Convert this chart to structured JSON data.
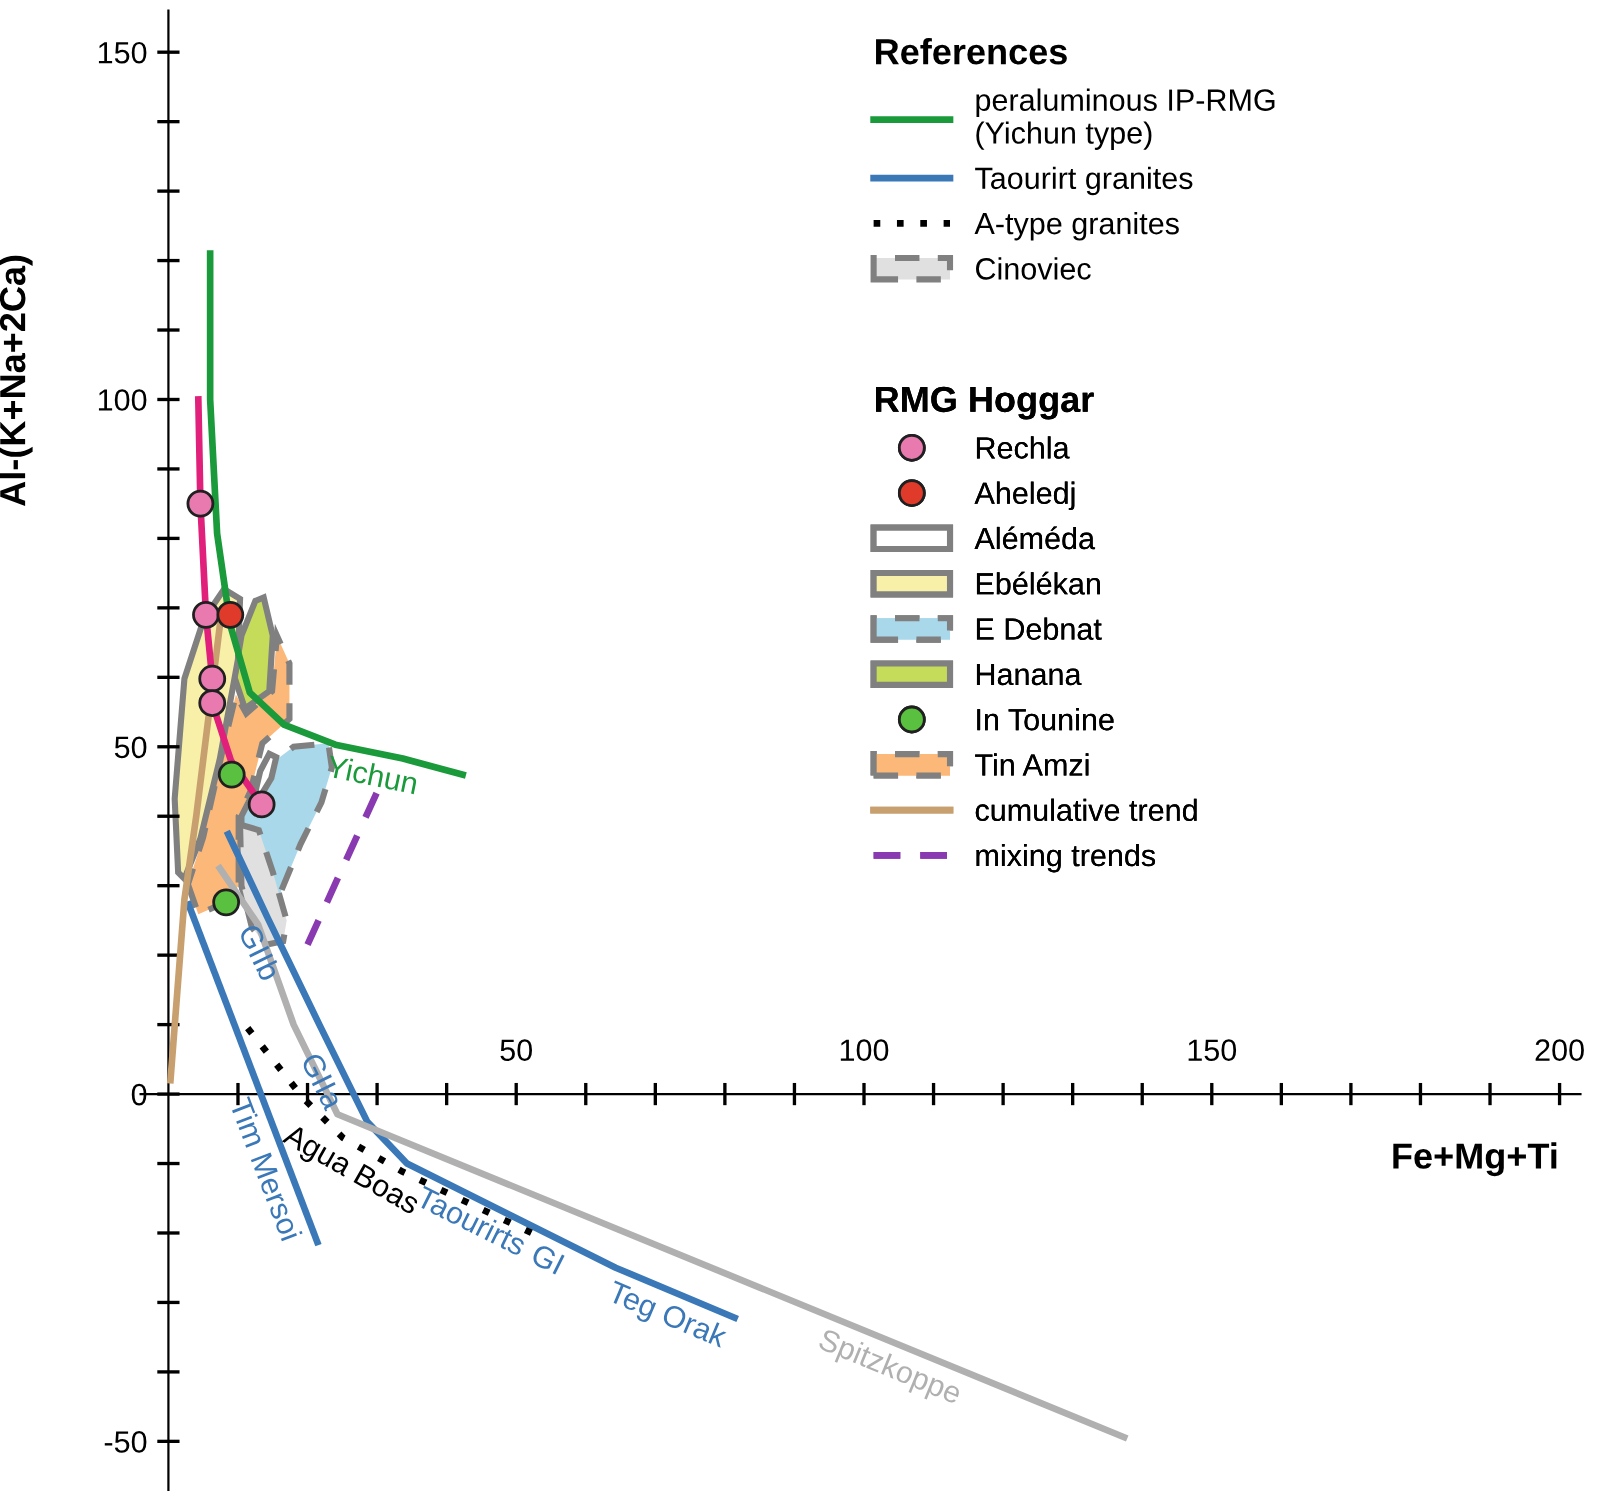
{
  "chart_data": {
    "type": "line",
    "xlabel": "Fe+Mg+Ti",
    "ylabel": "Al-(K+Na+2Ca)",
    "legend_title": [
      "References",
      "RMG Hoggar"
    ],
    "xlim": [
      -4,
      203
    ],
    "ylim": [
      -57,
      156
    ],
    "xticks": [
      {
        "value": 10,
        "label": null
      },
      {
        "value": 20,
        "label": null
      },
      {
        "value": 30,
        "label": null
      },
      {
        "value": 40,
        "label": null
      },
      50,
      {
        "value": 60,
        "label": null
      },
      {
        "value": 70,
        "label": null
      },
      {
        "value": 80,
        "label": null
      },
      {
        "value": 90,
        "label": null
      },
      100,
      {
        "value": 110,
        "label": null
      },
      {
        "value": 120,
        "label": null
      },
      {
        "value": 130,
        "label": null
      },
      {
        "value": 140,
        "label": null
      },
      150,
      {
        "value": 160,
        "label": null
      },
      {
        "value": 170,
        "label": null
      },
      {
        "value": 180,
        "label": null
      },
      {
        "value": 190,
        "label": null
      },
      200
    ],
    "yticks": [
      -50,
      {
        "value": -40,
        "label": null
      },
      {
        "value": -30,
        "label": null
      },
      {
        "value": -20,
        "label": null
      },
      {
        "value": -10,
        "label": null
      },
      0,
      {
        "value": 10,
        "label": null
      },
      {
        "value": 20,
        "label": null
      },
      {
        "value": 30,
        "label": null
      },
      {
        "value": 40,
        "label": null
      },
      50,
      {
        "value": 60,
        "label": null
      },
      {
        "value": 70,
        "label": null
      },
      {
        "value": 80,
        "label": null
      },
      {
        "value": 90,
        "label": null
      },
      100,
      {
        "value": 110,
        "label": null
      },
      {
        "value": 120,
        "label": null
      },
      {
        "value": 130,
        "label": null
      },
      {
        "value": 140,
        "label": null
      },
      150
    ],
    "legend": "top right",
    "series": [
      {
        "name": "peraluminous IP-RMG\n(Yichun type)",
        "color": "#1a9a3a",
        "line_style": "solid",
        "x": [
          6,
          6,
          7,
          8.9,
          11.7,
          16.6,
          24,
          33.7,
          42.3
        ],
        "values": [
          121,
          100,
          80.7,
          67.5,
          57.8,
          53.2,
          50.3,
          48.3,
          46
        ]
      },
      {
        "name": "Taourirt granites",
        "color": "#3a78b8",
        "line_style": "solid",
        "x": [
          8.6,
          14.3,
          21.7,
          28.6,
          34.3,
          64.3,
          81.4
        ],
        "values": [
          37.4,
          25.3,
          10,
          -4,
          -10,
          -25,
          -32.2
        ]
      },
      {
        "color": "#3a78b8",
        "line_style": "solid",
        "x": [
          2.9,
          21.4
        ],
        "values": [
          27.3,
          -21.3
        ]
      },
      {
        "name": "A-type granites",
        "color": "#000000",
        "line_style": "dotted",
        "x": [
          11.4,
          19.4,
          25.1,
          33.7,
          53.7
        ],
        "values": [
          9.5,
          -0.6,
          -6.3,
          -11.2,
          -20.7
        ]
      },
      {
        "color": "#b0b0b0",
        "line_style": "solid",
        "x": [
          7.4,
          12.9,
          18,
          24.3,
          137.4
        ],
        "values": [
          32.5,
          24.4,
          10,
          -2.9,
          -49.4
        ]
      },
      {
        "name": "Cinoviec",
        "type": "area",
        "color": "#e0e0e0",
        "line_style": "dashed",
        "x": [
          10.3,
          13,
          15,
          17,
          16.5,
          14,
          12,
          10.5
        ],
        "values": [
          38.8,
          38,
          32,
          25,
          22,
          21.5,
          24,
          30
        ]
      },
      {
        "name": "Rechla",
        "type": "scatter",
        "color": "#e87ab0",
        "marker": "circle",
        "x": [
          4.6,
          5.4,
          6.3,
          6.3,
          13.4
        ],
        "values": [
          85,
          69,
          59.8,
          56.3,
          41.7
        ]
      },
      {
        "name": "Aheledj",
        "type": "scatter",
        "color": "#e03a2a",
        "marker": "circle",
        "x": [
          8.9
        ],
        "values": [
          69
        ]
      },
      {
        "name": "Aléméda",
        "type": "area",
        "color": "#ffffff",
        "line_style": "solid",
        "x": [
          12.5,
          13.2,
          14.5,
          15.5,
          14.8,
          13.3
        ],
        "values": [
          43.5,
          46.5,
          49,
          48.5,
          45.5,
          43
        ]
      },
      {
        "name": "Ebélékan",
        "type": "area",
        "color": "#f8f0a8",
        "line_style": "solid",
        "x": [
          1.4,
          0.9,
          2.3,
          5.1,
          8,
          10.3,
          10,
          7.4,
          4.6,
          2.3
        ],
        "values": [
          31.9,
          42.5,
          59.8,
          68.4,
          72.7,
          71.3,
          62.6,
          48.3,
          36.8,
          31
        ]
      },
      {
        "name": "E Debnat",
        "type": "area",
        "color": "#a8d8ea",
        "line_style": "dashed",
        "x": [
          10.5,
          14,
          18,
          23,
          23.5,
          22,
          19,
          15.7,
          12,
          10.5
        ],
        "values": [
          40,
          47,
          50,
          50.5,
          47,
          42,
          36,
          28,
          24.5,
          30
        ]
      },
      {
        "name": "Hanana",
        "type": "area",
        "color": "#c4dc5a",
        "line_style": "solid",
        "x": [
          13.7,
          15,
          14.5,
          11,
          9.5,
          10.5,
          12.5
        ],
        "values": [
          71.5,
          66,
          58,
          55.5,
          60,
          66,
          71
        ]
      },
      {
        "name": "In Tounine",
        "type": "scatter",
        "color": "#5ac040",
        "marker": "circle",
        "x": [
          9.1,
          8.3
        ],
        "values": [
          46,
          27.6
        ]
      },
      {
        "name": "Tin Amzi",
        "type": "area",
        "color": "#fbb878",
        "line_style": "dashed",
        "x": [
          2.8,
          4.3,
          8,
          10.1,
          10.1,
          11.8,
          13.5,
          17.4,
          17.4,
          15.6,
          14.9,
          11.2,
          9.7,
          7.9,
          5
        ],
        "values": [
          30.2,
          25.9,
          27.5,
          30,
          40,
          43.6,
          50.5,
          54,
          62,
          66,
          58,
          54.8,
          57.5,
          50,
          37
        ]
      },
      {
        "name": "cumulative trend",
        "color": "#c8a070",
        "line_style": "solid",
        "x": [
          7.4,
          4,
          2.3,
          0.3
        ],
        "values": [
          67.5,
          40,
          28,
          2
        ]
      },
      {
        "name": "mixing trends",
        "color": "#8a3ab0",
        "line_style": "dashed",
        "x": [
          20,
          30
        ],
        "values": [
          21.5,
          43.5
        ]
      },
      {
        "color": "#e0207a",
        "line_style": "solid",
        "x": [
          13.4,
          9,
          6.3,
          6.3,
          5.4,
          4.6,
          4.3
        ],
        "values": [
          41.7,
          48,
          56.3,
          59.8,
          69,
          85,
          100
        ]
      }
    ],
    "annotations": [
      {
        "text": "Yichun",
        "x": 30,
        "y": 49.1
      },
      {
        "text": "GIIb",
        "x": 16,
        "y": 21.8
      },
      {
        "text": "GIIa",
        "x": 25,
        "y": 3.3
      },
      {
        "text": "GI",
        "x": 56,
        "y": -20.9
      },
      {
        "text": "Tim Mersoi",
        "x": 17,
        "y": -9.7
      },
      {
        "text": "Taourirts",
        "x": 45,
        "y": -15.4
      },
      {
        "text": "Teg Orak",
        "x": 73,
        "y": -28.7
      },
      {
        "text": "Agua Boas",
        "x": 28,
        "y": -8
      },
      {
        "text": "Spitzkoppe",
        "x": 105,
        "y": -36.2
      }
    ]
  }
}
